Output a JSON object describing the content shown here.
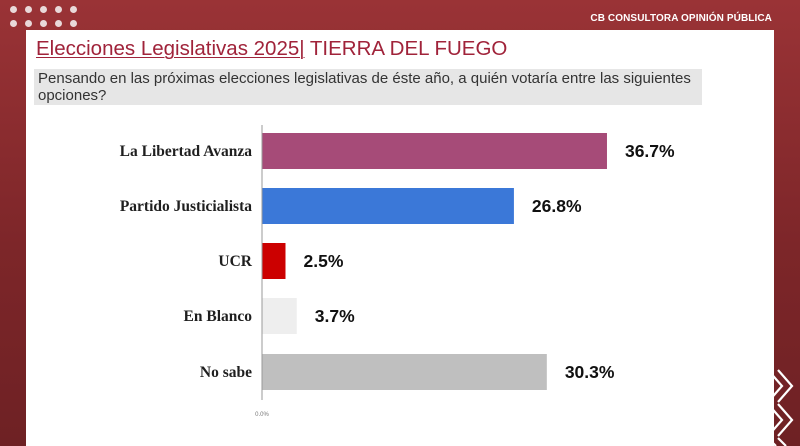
{
  "brand": "CB CONSULTORA OPINIÓN PÚBLICA",
  "title_main": "Elecciones Legislativas 2025|",
  "title_sub": " TIERRA DEL FUEGO",
  "question": "Pensando en las próximas elecciones legislativas de éste año, a quién votaría entre las siguientes opciones?",
  "chart_data": {
    "type": "bar",
    "orientation": "horizontal",
    "categories": [
      "La Libertad Avanza",
      "Partido Justicialista",
      "UCR",
      "En Blanco",
      "No sabe"
    ],
    "values": [
      36.7,
      26.8,
      2.5,
      3.7,
      30.3
    ],
    "value_labels": [
      "36.7%",
      "26.8%",
      "2.5%",
      "3.7%",
      "30.3%"
    ],
    "colors": [
      "#a64b78",
      "#3b78d8",
      "#cc0000",
      "#eeeeee",
      "#bfbfbf"
    ],
    "xlim": [
      0,
      40
    ],
    "x_tick_labels": [
      "0.0%"
    ],
    "grid": false
  }
}
